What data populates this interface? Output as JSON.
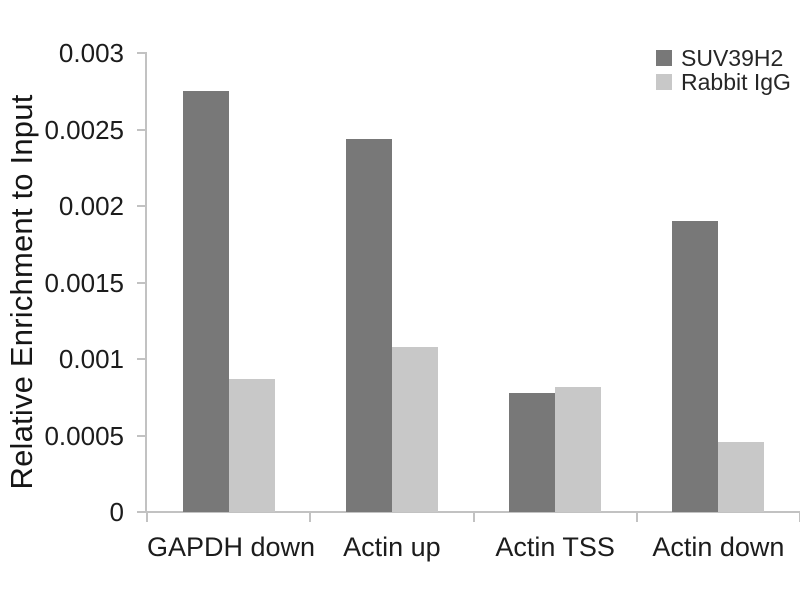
{
  "chart_data": {
    "type": "bar",
    "title": "",
    "xlabel": "",
    "ylabel": "Relative Enrichment to Input",
    "categories": [
      "GAPDH down",
      "Actin up",
      "Actin TSS",
      "Actin down"
    ],
    "series": [
      {
        "name": "SUV39H2",
        "color": "#787878",
        "values": [
          0.00275,
          0.00244,
          0.00078,
          0.0019
        ]
      },
      {
        "name": "Rabbit IgG",
        "color": "#c8c8c8",
        "values": [
          0.00087,
          0.00108,
          0.00082,
          0.00046
        ]
      }
    ],
    "ylim": [
      0,
      0.003
    ],
    "yticks": [
      {
        "value": 0,
        "label": "0"
      },
      {
        "value": 0.0005,
        "label": "0.0005"
      },
      {
        "value": 0.001,
        "label": "0.001"
      },
      {
        "value": 0.0015,
        "label": "0.0015"
      },
      {
        "value": 0.002,
        "label": "0.002"
      },
      {
        "value": 0.0025,
        "label": "0.0025"
      },
      {
        "value": 0.003,
        "label": "0.003"
      }
    ],
    "grid": false,
    "legend_position": "top-right",
    "axis_color": "#c2c2c2",
    "text_color": "#1c1c1c",
    "background_color": "#ffffff"
  }
}
